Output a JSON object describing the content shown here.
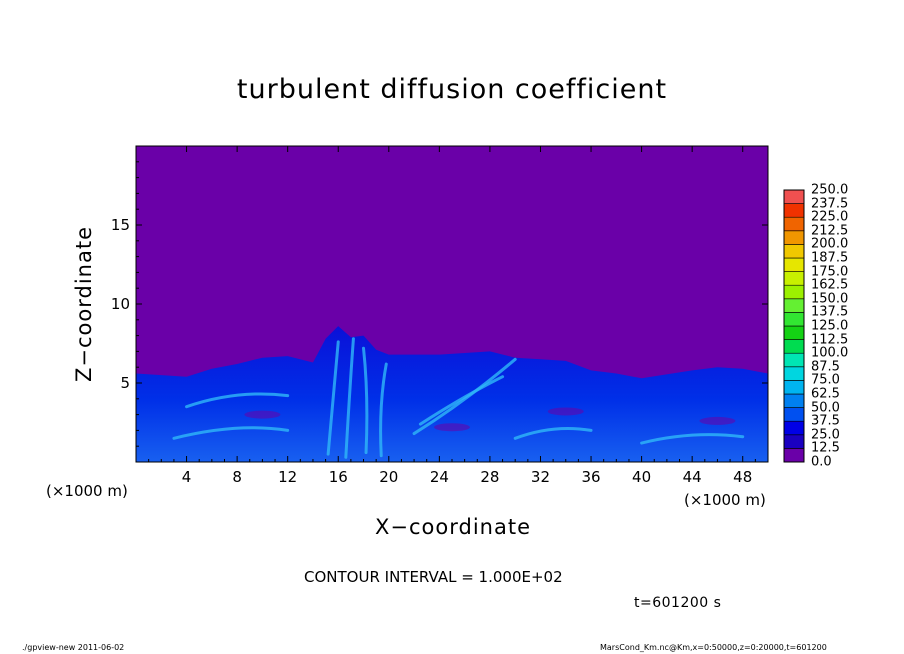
{
  "title": "turbulent diffusion coefficient",
  "x_unit_left": "(×1000 m)",
  "x_unit_right": "(×1000 m)",
  "xlabel": "X−coordinate",
  "ylabel": "Z−coordinate",
  "contour_interval": "CONTOUR INTERVAL = 1.000E+02",
  "time_label": "t=601200 s",
  "footer_left": "./gpview-new   2011-06-02",
  "footer_right": "MarsCond_Km.nc@Km,x=0:50000,z=0:20000,t=601200",
  "chart_data": {
    "type": "heatmap",
    "title": "turbulent diffusion coefficient",
    "xlabel": "X−coordinate",
    "ylabel": "Z−coordinate",
    "xlim": [
      0,
      50
    ],
    "ylim": [
      0,
      20
    ],
    "x_ticks": [
      "4",
      "8",
      "12",
      "16",
      "20",
      "24",
      "28",
      "32",
      "36",
      "40",
      "44",
      "48"
    ],
    "y_ticks": [
      "5",
      "10",
      "15"
    ],
    "background_value": 0.0,
    "colorbar": {
      "levels": [
        "0.0",
        "12.5",
        "25.0",
        "37.5",
        "50.0",
        "62.5",
        "75.0",
        "87.5",
        "100.0",
        "112.5",
        "125.0",
        "137.5",
        "150.0",
        "162.5",
        "175.0",
        "187.5",
        "200.0",
        "212.5",
        "225.0",
        "237.5",
        "250.0"
      ],
      "colors": [
        "#6a00a8",
        "#1a00c0",
        "#0000e6",
        "#0050f0",
        "#0080f0",
        "#00b4f0",
        "#00d6e0",
        "#00e6b4",
        "#00dc50",
        "#14d214",
        "#32e632",
        "#64f032",
        "#9cf000",
        "#c8f000",
        "#e6e600",
        "#f0c800",
        "#f09600",
        "#f06400",
        "#f03200",
        "#f05050"
      ]
    },
    "turbulent_layer_top": [
      [
        0,
        5.6
      ],
      [
        4,
        5.4
      ],
      [
        6,
        5.9
      ],
      [
        8,
        6.2
      ],
      [
        10,
        6.6
      ],
      [
        12,
        6.7
      ],
      [
        14,
        6.3
      ],
      [
        15,
        7.8
      ],
      [
        16,
        8.6
      ],
      [
        17,
        7.9
      ],
      [
        18,
        8.0
      ],
      [
        19,
        7.1
      ],
      [
        20,
        6.8
      ],
      [
        24,
        6.8
      ],
      [
        28,
        7.0
      ],
      [
        30,
        6.6
      ],
      [
        32,
        6.5
      ],
      [
        34,
        6.4
      ],
      [
        36,
        5.8
      ],
      [
        38,
        5.6
      ],
      [
        40,
        5.3
      ],
      [
        44,
        5.8
      ],
      [
        46,
        6.0
      ],
      [
        48,
        5.9
      ],
      [
        50,
        5.6
      ]
    ]
  }
}
